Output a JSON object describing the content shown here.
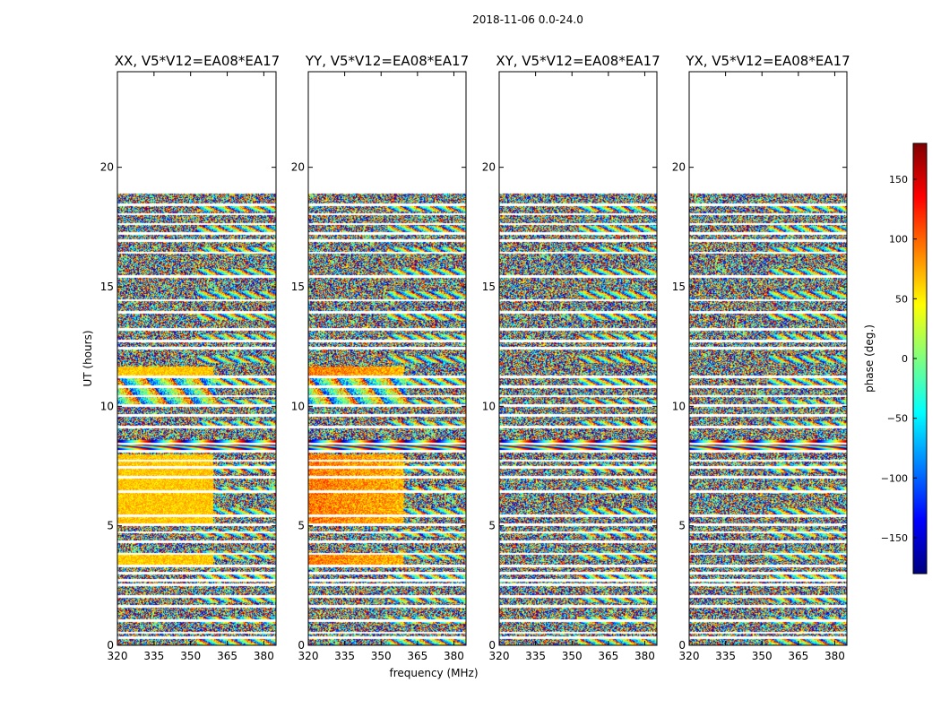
{
  "suptitle": "2018-11-06 0.0-24.0",
  "colors": {
    "background": "#ffffff",
    "axis": "#000000",
    "flag_gap": "#ffffff"
  },
  "chart_data": [
    {
      "type": "heatmap",
      "title": "XX, V5*V12=EA08*EA17",
      "xlabel": "",
      "ylabel": "UT (hours)",
      "xlim": [
        320,
        385
      ],
      "ylim": [
        0,
        24
      ],
      "xticks": [
        320,
        335,
        350,
        365,
        380
      ],
      "yticks": [
        0,
        5,
        10,
        15,
        20
      ],
      "data_extent_hours": [
        0,
        18.9
      ],
      "value_range": [
        -180,
        180
      ],
      "colormap": "jet",
      "pattern": "XX"
    },
    {
      "type": "heatmap",
      "title": "YY, V5*V12=EA08*EA17",
      "xlabel": "frequency (MHz)",
      "ylabel": "",
      "xlim": [
        320,
        385
      ],
      "ylim": [
        0,
        24
      ],
      "xticks": [
        320,
        335,
        350,
        365,
        380
      ],
      "yticks": [
        0,
        5,
        10,
        15,
        20
      ],
      "data_extent_hours": [
        0,
        18.9
      ],
      "value_range": [
        -180,
        180
      ],
      "colormap": "jet",
      "pattern": "YY"
    },
    {
      "type": "heatmap",
      "title": "XY, V5*V12=EA08*EA17",
      "xlabel": "",
      "ylabel": "",
      "xlim": [
        320,
        385
      ],
      "ylim": [
        0,
        24
      ],
      "xticks": [
        320,
        335,
        350,
        365,
        380
      ],
      "yticks": [
        0,
        5,
        10,
        15,
        20
      ],
      "data_extent_hours": [
        0,
        18.9
      ],
      "value_range": [
        -180,
        180
      ],
      "colormap": "jet",
      "pattern": "XY"
    },
    {
      "type": "heatmap",
      "title": "YX, V5*V12=EA08*EA17",
      "xlabel": "",
      "ylabel": "",
      "xlim": [
        320,
        385
      ],
      "ylim": [
        0,
        24
      ],
      "xticks": [
        320,
        335,
        350,
        365,
        380
      ],
      "yticks": [
        0,
        5,
        10,
        15,
        20
      ],
      "data_extent_hours": [
        0,
        18.9
      ],
      "value_range": [
        -180,
        180
      ],
      "colormap": "jet",
      "pattern": "YX"
    }
  ],
  "colorbar": {
    "label": "phase (deg.)",
    "range": [
      -180,
      180
    ],
    "ticks": [
      150,
      100,
      50,
      0,
      -50,
      -100,
      -150
    ],
    "tick_labels": [
      "150",
      "100",
      "50",
      "0",
      "−50",
      "−100",
      "−150"
    ],
    "colormap": "jet"
  },
  "flag_gaps_hours": [
    0.35,
    0.55,
    1.05,
    1.65,
    2.05,
    2.55,
    2.75,
    3.05,
    3.35,
    3.85,
    4.35,
    4.75,
    5.05,
    5.45,
    6.45,
    7.05,
    7.45,
    7.75,
    8.15,
    8.45,
    9.15,
    9.65,
    10.05,
    10.45,
    10.85,
    11.25,
    12.45,
    12.75,
    13.25,
    13.95,
    14.45,
    15.45,
    16.45,
    16.95,
    17.25,
    17.65,
    18.05,
    18.45
  ]
}
